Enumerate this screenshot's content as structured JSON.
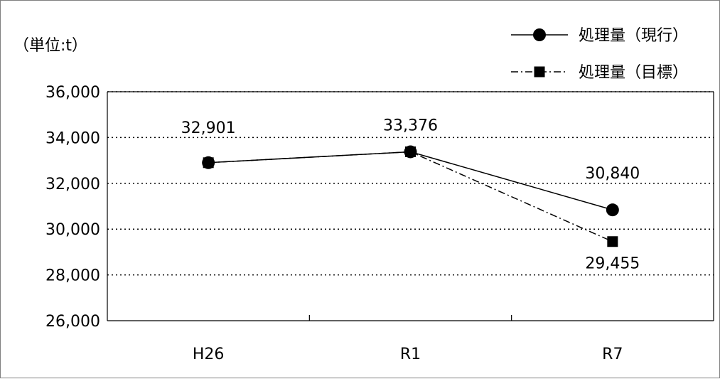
{
  "chart_data": {
    "type": "line",
    "unit_label": "（単位:t）",
    "categories": [
      "H26",
      "R1",
      "R7"
    ],
    "ylim": [
      26000,
      36000
    ],
    "yticks": [
      26000,
      28000,
      30000,
      32000,
      34000,
      36000
    ],
    "ytick_labels": [
      "26,000",
      "28,000",
      "30,000",
      "32,000",
      "34,000",
      "36,000"
    ],
    "grid": true,
    "legend_position": "top-right",
    "series": [
      {
        "name": "処理量（現行）",
        "values": [
          32901,
          33376,
          30840
        ],
        "data_labels": [
          "32,901",
          "33,376",
          "30,840"
        ],
        "line_style": "solid",
        "marker": "circle",
        "color": "#000000"
      },
      {
        "name": "処理量（目標）",
        "values": [
          32901,
          33376,
          29455
        ],
        "data_labels": [
          "",
          "",
          "29,455"
        ],
        "line_style": "dash-dot",
        "marker": "square",
        "color": "#000000"
      }
    ]
  }
}
